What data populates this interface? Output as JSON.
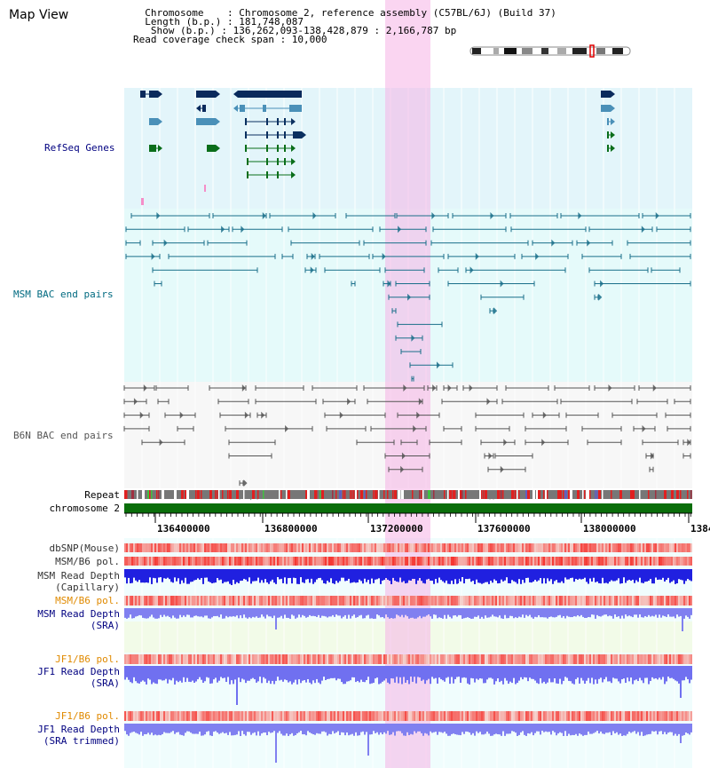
{
  "page": {
    "title": "Map View"
  },
  "info": {
    "lines": [
      "  Chromosome    : Chromosome 2, reference assembly (C57BL/6J) (Build 37)",
      "  Length (b.p.) : 181,748,087",
      "   Show (b.p.) : 136,262,093-138,428,879 : 2,166,787 bp",
      "Read coverage check span : 10,000"
    ]
  },
  "tracks": {
    "refseq": "RefSeq Genes",
    "msm_bac": "MSM BAC end pairs",
    "b6n_bac": "B6N BAC end pairs",
    "repeat": "Repeat",
    "chromosome": "chromosome 2",
    "dbsnp": "dbSNP(Mouse)",
    "msm_b6_pol": "MSM/B6 pol.",
    "msm_depth_cap_1": "MSM Read Depth",
    "msm_depth_cap_2": "(Capillary)",
    "msm_b6_pol_2": "MSM/B6 pol.",
    "msm_depth_sra_1": "MSM Read Depth",
    "msm_depth_sra_2": "(SRA)",
    "jf1_pol": "JF1/B6 pol.",
    "jf1_depth_1": "JF1 Read Depth",
    "jf1_depth_2": "(SRA)",
    "jf1_pol_2": "JF1/B6 pol.",
    "jf1_trim_1": "JF1 Read Depth",
    "jf1_trim_2": "(SRA trimmed)"
  },
  "axis": {
    "ticks": [
      "136400000",
      "136800000",
      "137200000",
      "137600000",
      "138000000",
      "1384"
    ]
  },
  "colors": {
    "refseq_dark": "#0a2a5c",
    "refseq_mid": "#4a90b8",
    "refseq_green": "#0a6e1a",
    "msm_bac": "#1a6f8a",
    "b6n_bac": "#555555",
    "highlight": "#f5b3e6",
    "chromosome": "#0a6e0a",
    "depth_msm_cap": "#2020e0",
    "depth_sra": "#8080f0",
    "pol_red": "#f05050",
    "label_blue": "#000080",
    "label_teal": "#006a80",
    "label_orange": "#e08a00"
  }
}
